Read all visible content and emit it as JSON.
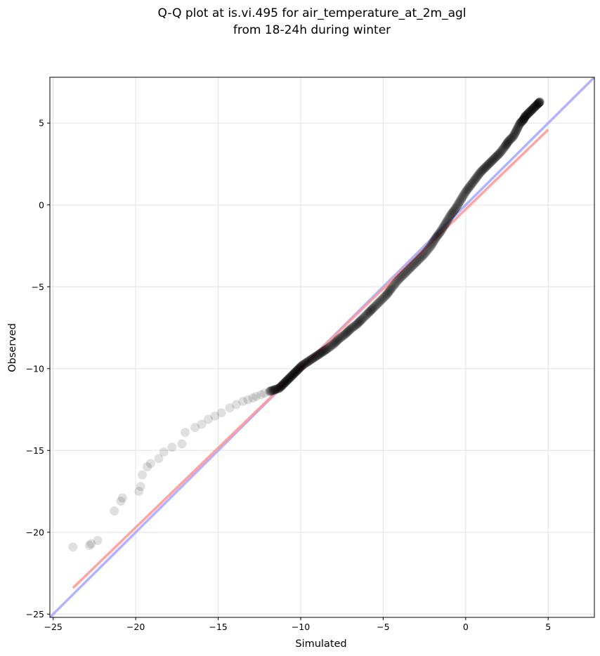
{
  "chart_data": {
    "type": "scatter",
    "title_lines": [
      "Q-Q plot at is.vi.495 for air_temperature_at_2m_agl",
      "from 18-24h during winter"
    ],
    "xlabel": "Simulated",
    "ylabel": "Observed",
    "xlim": [
      -25.2,
      7.8
    ],
    "ylim": [
      -25.2,
      7.8
    ],
    "x_ticks": [
      -25,
      -20,
      -15,
      -10,
      -5,
      0,
      5
    ],
    "y_ticks": [
      -25,
      -20,
      -15,
      -10,
      -5,
      0,
      5
    ],
    "x_tick_labels": [
      "−25",
      "−20",
      "−15",
      "−10",
      "−5",
      "0",
      "5"
    ],
    "y_tick_labels": [
      "−25",
      "−20",
      "−15",
      "−10",
      "−5",
      "0",
      "5"
    ],
    "grid": true,
    "colors": {
      "points": "#000000",
      "identity_line": "#aaaaff",
      "fit_line": "#ff9999",
      "grid": "#e8e8e8"
    },
    "reference_lines": [
      {
        "kind": "identity",
        "x": [
          -25.2,
          7.8
        ],
        "y": [
          -25.2,
          7.8
        ]
      },
      {
        "kind": "fit",
        "x": [
          -23.8,
          5.0
        ],
        "y": [
          -23.4,
          4.6
        ]
      }
    ],
    "quantiles": {
      "x": [
        -23.8,
        -22.8,
        -22.7,
        -22.3,
        -21.3,
        -20.9,
        -20.8,
        -19.8,
        -19.7,
        -19.6,
        -19.3,
        -19.1,
        -18.6,
        -18.3,
        -17.8,
        -17.2,
        -17.0,
        -16.4,
        -16.0,
        -15.6,
        -15.2,
        -14.8,
        -14.3,
        -13.9,
        -13.5,
        -13.2,
        -12.9,
        -12.7,
        -12.4,
        -12.2,
        -11.9,
        -11.6,
        -11.3,
        -11.1,
        -10.9,
        -10.7,
        -10.5,
        -10.3,
        -10.1,
        -9.9,
        -9.6,
        -9.3,
        -9.0,
        -8.7,
        -8.4,
        -8.0,
        -7.7,
        -7.3,
        -7.0,
        -6.6,
        -6.3,
        -5.9,
        -5.6,
        -5.2,
        -4.8,
        -4.5,
        -4.1,
        -3.7,
        -3.3,
        -2.9,
        -2.5,
        -2.1,
        -1.8,
        -1.5,
        -1.2,
        -0.9,
        -0.6,
        -0.3,
        0.0,
        0.3,
        0.6,
        0.9,
        1.2,
        1.5,
        1.8,
        2.1,
        2.4,
        2.6,
        2.9,
        3.1,
        3.3,
        3.5,
        3.6,
        3.8,
        4.0,
        4.2,
        4.4,
        4.5
      ],
      "y": [
        -20.9,
        -20.8,
        -20.7,
        -20.5,
        -18.7,
        -18.1,
        -17.9,
        -17.5,
        -17.2,
        -16.5,
        -16.0,
        -15.8,
        -15.5,
        -15.1,
        -14.8,
        -14.6,
        -13.9,
        -13.6,
        -13.4,
        -13.1,
        -12.9,
        -12.7,
        -12.4,
        -12.2,
        -12.0,
        -11.9,
        -11.8,
        -11.7,
        -11.6,
        -11.5,
        -11.4,
        -11.3,
        -11.2,
        -11.0,
        -10.8,
        -10.6,
        -10.4,
        -10.2,
        -10.0,
        -9.8,
        -9.6,
        -9.4,
        -9.2,
        -9.0,
        -8.8,
        -8.5,
        -8.2,
        -7.9,
        -7.6,
        -7.3,
        -7.0,
        -6.6,
        -6.3,
        -5.9,
        -5.5,
        -5.1,
        -4.6,
        -4.2,
        -3.8,
        -3.4,
        -3.0,
        -2.5,
        -2.0,
        -1.6,
        -1.1,
        -0.6,
        -0.2,
        0.3,
        0.8,
        1.2,
        1.6,
        2.0,
        2.3,
        2.6,
        2.9,
        3.2,
        3.6,
        3.9,
        4.2,
        4.6,
        5.0,
        5.2,
        5.4,
        5.6,
        5.8,
        6.0,
        6.2,
        6.3
      ]
    }
  }
}
